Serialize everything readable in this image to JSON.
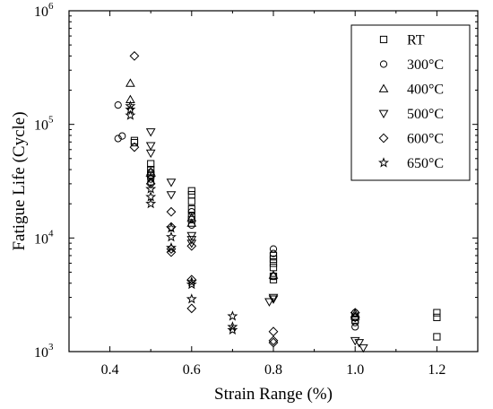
{
  "chart_data": {
    "type": "scatter",
    "title": "",
    "xlabel": "Strain Range (%)",
    "ylabel": "Fatigue Life (Cycle)",
    "xlim": [
      0.3,
      1.3
    ],
    "ylim": [
      1000,
      1000000
    ],
    "yscale": "log",
    "x_ticks": [
      "0.4",
      "0.6",
      "0.8",
      "1.0",
      "1.2"
    ],
    "y_ticks": [
      {
        "base": "10",
        "exp": "3"
      },
      {
        "base": "10",
        "exp": "4"
      },
      {
        "base": "10",
        "exp": "5"
      },
      {
        "base": "10",
        "exp": "6"
      }
    ],
    "grid": false,
    "legend_position": "top-right",
    "series": [
      {
        "name": "RT",
        "marker": "square",
        "points": [
          [
            0.46,
            72000
          ],
          [
            0.46,
            69000
          ],
          [
            0.5,
            45000
          ],
          [
            0.5,
            40000
          ],
          [
            0.5,
            36000
          ],
          [
            0.6,
            26000
          ],
          [
            0.6,
            24000
          ],
          [
            0.6,
            21000
          ],
          [
            0.6,
            18000
          ],
          [
            0.6,
            15500
          ],
          [
            0.6,
            14500
          ],
          [
            0.8,
            7000
          ],
          [
            0.8,
            6500
          ],
          [
            0.8,
            6000
          ],
          [
            0.8,
            5500
          ],
          [
            0.8,
            4600
          ],
          [
            0.8,
            4300
          ],
          [
            1.0,
            2000
          ],
          [
            1.0,
            1900
          ],
          [
            1.2,
            2200
          ],
          [
            1.2,
            2000
          ],
          [
            1.2,
            1350
          ]
        ]
      },
      {
        "name": "300°C",
        "marker": "circle",
        "points": [
          [
            0.42,
            148000
          ],
          [
            0.42,
            75000
          ],
          [
            0.43,
            79000
          ],
          [
            0.5,
            38000
          ],
          [
            0.5,
            33000
          ],
          [
            0.5,
            31000
          ],
          [
            0.6,
            17000
          ],
          [
            0.6,
            13000
          ],
          [
            0.8,
            8000
          ],
          [
            0.8,
            7300
          ],
          [
            0.8,
            4600
          ],
          [
            1.0,
            2200
          ],
          [
            1.0,
            1800
          ],
          [
            1.0,
            1650
          ]
        ]
      },
      {
        "name": "400°C",
        "marker": "triangle-up",
        "points": [
          [
            0.45,
            230000
          ],
          [
            0.45,
            165000
          ],
          [
            0.5,
            38000
          ],
          [
            0.6,
            15000
          ],
          [
            0.6,
            13500
          ],
          [
            0.8,
            4700
          ],
          [
            1.0,
            2150
          ],
          [
            1.0,
            2050
          ]
        ]
      },
      {
        "name": "500°C",
        "marker": "triangle-down",
        "points": [
          [
            0.5,
            86000
          ],
          [
            0.5,
            65000
          ],
          [
            0.5,
            56000
          ],
          [
            0.55,
            31000
          ],
          [
            0.55,
            24000
          ],
          [
            0.6,
            10500
          ],
          [
            0.6,
            9700
          ],
          [
            0.6,
            9000
          ],
          [
            0.8,
            3000
          ],
          [
            0.8,
            2900
          ],
          [
            0.79,
            2750
          ],
          [
            1.0,
            1250
          ],
          [
            1.01,
            1200
          ],
          [
            1.02,
            1080
          ]
        ]
      },
      {
        "name": "600°C",
        "marker": "diamond",
        "points": [
          [
            0.46,
            400000
          ],
          [
            0.46,
            63000
          ],
          [
            0.5,
            30000
          ],
          [
            0.55,
            17000
          ],
          [
            0.55,
            12500
          ],
          [
            0.55,
            8000
          ],
          [
            0.55,
            7500
          ],
          [
            0.6,
            8500
          ],
          [
            0.6,
            4300
          ],
          [
            0.6,
            2400
          ],
          [
            0.8,
            1500
          ],
          [
            0.8,
            1250
          ],
          [
            0.8,
            1200
          ],
          [
            1.0,
            2200
          ],
          [
            1.0,
            2000
          ]
        ]
      },
      {
        "name": "650°C",
        "marker": "star",
        "points": [
          [
            0.45,
            145000
          ],
          [
            0.45,
            135000
          ],
          [
            0.45,
            120000
          ],
          [
            0.5,
            34000
          ],
          [
            0.5,
            27000
          ],
          [
            0.5,
            23000
          ],
          [
            0.5,
            20000
          ],
          [
            0.55,
            12200
          ],
          [
            0.55,
            10200
          ],
          [
            0.55,
            8200
          ],
          [
            0.6,
            4100
          ],
          [
            0.6,
            3900
          ],
          [
            0.6,
            2900
          ],
          [
            0.7,
            2050
          ],
          [
            0.7,
            1650
          ],
          [
            0.7,
            1550
          ]
        ]
      }
    ]
  }
}
